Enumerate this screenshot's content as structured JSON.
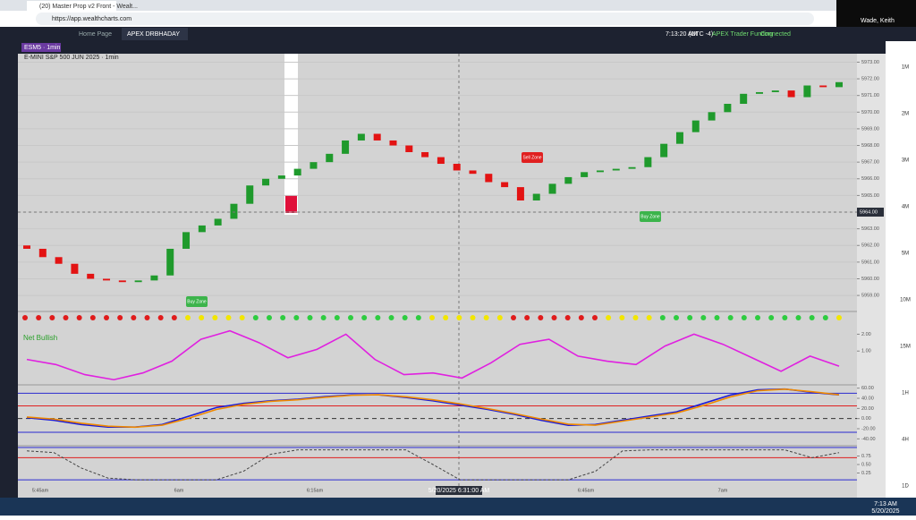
{
  "browser": {
    "tab_title": "(20) Master Prop v2 Front - Wealt...",
    "url": "https://app.wealthcharts.com"
  },
  "app": {
    "tabs": [
      "Home Page",
      "APEX DRBHADAY"
    ],
    "time": "7:13:20 AM",
    "timezone": "(UTC -4)",
    "account": "APEX Trader Funding",
    "status": "Connected"
  },
  "user": "Wade, Keith",
  "chart_data": [
    {
      "type": "candlestick",
      "symbol": "ESM5 · 1min",
      "title": "E-MINI S&P 500 JUN 2025 · 1min",
      "open": [
        5962.0,
        5961.8,
        5961.3,
        5960.9,
        5960.3,
        5960.0,
        5959.9,
        5959.8,
        5959.9,
        5960.2,
        5961.8,
        5962.8,
        5963.2,
        5963.6,
        5964.5,
        5965.6,
        5966.0,
        5966.2,
        5966.6,
        5967.0,
        5967.5,
        5968.3,
        5968.7,
        5968.3,
        5968.0,
        5967.6,
        5967.3,
        5966.9,
        5966.5,
        5966.3,
        5965.8,
        5965.5,
        5964.7,
        5965.1,
        5965.7,
        5966.1,
        5966.4,
        5966.5,
        5966.6,
        5966.7,
        5967.3,
        5968.1,
        5968.8,
        5969.5,
        5970.0,
        5970.5,
        5971.1,
        5971.2,
        5971.3,
        5970.9,
        5971.6,
        5971.5
      ],
      "close": [
        5961.8,
        5961.3,
        5960.9,
        5960.3,
        5960.0,
        5959.9,
        5959.8,
        5959.9,
        5960.2,
        5961.8,
        5962.8,
        5963.2,
        5963.6,
        5964.5,
        5965.6,
        5966.0,
        5966.2,
        5966.6,
        5967.0,
        5967.5,
        5968.3,
        5968.7,
        5968.3,
        5968.0,
        5967.6,
        5967.3,
        5966.9,
        5966.5,
        5966.3,
        5965.8,
        5965.5,
        5964.7,
        5965.1,
        5965.7,
        5966.1,
        5966.4,
        5966.5,
        5966.6,
        5966.7,
        5967.3,
        5968.1,
        5968.8,
        5969.5,
        5970.0,
        5970.5,
        5971.1,
        5971.2,
        5971.3,
        5970.9,
        5971.6,
        5971.5,
        5971.8
      ],
      "up_color": "#1f9a2c",
      "down_color": "#e31313",
      "ylim": [
        5958.2,
        5973.4
      ],
      "yticks": [
        {
          "value": 5959,
          "label": "5959.00"
        },
        {
          "value": 5960,
          "label": "5960.00"
        },
        {
          "value": 5961,
          "label": "5961.00"
        },
        {
          "value": 5962,
          "label": "5962.00"
        },
        {
          "value": 5963,
          "label": "5963.00"
        },
        {
          "value": 5964,
          "label": "5964.00"
        },
        {
          "value": 5965,
          "label": "5965.00"
        },
        {
          "value": 5966,
          "label": "5966.00"
        },
        {
          "value": 5967,
          "label": "5967.00"
        },
        {
          "value": 5968,
          "label": "5968.00"
        },
        {
          "value": 5969,
          "label": "5969.00"
        },
        {
          "value": 5970,
          "label": "5970.00"
        },
        {
          "value": 5971,
          "label": "5971.00"
        },
        {
          "value": 5972,
          "label": "5972.00"
        },
        {
          "value": 5973,
          "label": "5973.00"
        }
      ],
      "crosshair_price": {
        "value": 5964,
        "label": "5964.00"
      },
      "annotations": [
        "Sell Zone",
        "Buy Zone",
        "Buy Zone"
      ]
    },
    {
      "type": "dots",
      "colors": [
        "#e01b1b",
        "#e01b1b",
        "#e01b1b",
        "#e01b1b",
        "#e01b1b",
        "#e01b1b",
        "#e01b1b",
        "#e01b1b",
        "#e01b1b",
        "#e01b1b",
        "#e01b1b",
        "#e01b1b",
        "#f2e600",
        "#f2e600",
        "#f2e600",
        "#f2e600",
        "#f2e600",
        "#2ecc40",
        "#2ecc40",
        "#2ecc40",
        "#2ecc40",
        "#2ecc40",
        "#2ecc40",
        "#2ecc40",
        "#2ecc40",
        "#2ecc40",
        "#2ecc40",
        "#2ecc40",
        "#2ecc40",
        "#2ecc40",
        "#f2e600",
        "#f2e600",
        "#f2e600",
        "#f2e600",
        "#f2e600",
        "#f2e600",
        "#e01b1b",
        "#e01b1b",
        "#e01b1b",
        "#e01b1b",
        "#e01b1b",
        "#e01b1b",
        "#e01b1b",
        "#f2e600",
        "#f2e600",
        "#f2e600",
        "#f2e600",
        "#2ecc40",
        "#2ecc40",
        "#2ecc40",
        "#2ecc40",
        "#2ecc40",
        "#2ecc40",
        "#2ecc40",
        "#2ecc40",
        "#2ecc40",
        "#2ecc40",
        "#2ecc40",
        "#2ecc40",
        "#2ecc40",
        "#f2e600"
      ]
    },
    {
      "type": "line",
      "title": "Net Bullish",
      "color": "#e020e0",
      "values": [
        0.5,
        0.2,
        -0.4,
        -0.7,
        -0.3,
        0.4,
        1.7,
        2.2,
        1.5,
        0.6,
        1.1,
        2.0,
        0.5,
        -0.4,
        -0.3,
        -0.6,
        0.3,
        1.4,
        1.7,
        0.7,
        0.4,
        0.2,
        1.3,
        2.0,
        1.4,
        0.6,
        -0.2,
        0.7,
        0.1
      ],
      "ylim": [
        -0.9,
        2.5
      ],
      "yticks": [
        {
          "value": 1,
          "label": "1.00"
        },
        {
          "value": 2,
          "label": "2.00"
        }
      ]
    },
    {
      "type": "line",
      "series": [
        {
          "color": "#1c1cd8",
          "values": [
            1.7,
            -3.3,
            -11.7,
            -16.7,
            -16.7,
            -11.7,
            5,
            21.7,
            30,
            35,
            38.3,
            43.3,
            46.7,
            46.7,
            41.7,
            35,
            26.7,
            18.3,
            8.3,
            -3.3,
            -13.3,
            -11.7,
            -3.3,
            5,
            13.3,
            30,
            46.7,
            56.7,
            58.3,
            51.7,
            46.7
          ]
        },
        {
          "color": "#f08a00",
          "values": [
            3,
            -1,
            -9,
            -15,
            -17,
            -13,
            1,
            18,
            28,
            34,
            37,
            42,
            46,
            47,
            43,
            37,
            29,
            20,
            10,
            -1,
            -11,
            -13,
            -5,
            3,
            11,
            26,
            43,
            55,
            58,
            53,
            47
          ]
        }
      ],
      "levels": [
        50,
        25,
        0,
        -27
      ],
      "ylim": [
        -50,
        63
      ],
      "yticks": [
        {
          "value": 60,
          "label": "60.00"
        },
        {
          "value": 40,
          "label": "40.00"
        },
        {
          "value": 20,
          "label": "20.00"
        },
        {
          "value": 0,
          "label": "0.00"
        },
        {
          "value": -20,
          "label": "-20.00"
        },
        {
          "value": -40,
          "label": "-40.00"
        }
      ]
    },
    {
      "type": "line",
      "color": "#444444",
      "values": [
        0.9,
        0.85,
        0.4,
        0.1,
        0.05,
        0.05,
        0.05,
        0.05,
        0.3,
        0.8,
        0.93,
        0.93,
        0.93,
        0.93,
        0.93,
        0.5,
        0.05,
        0.05,
        0.05,
        0.05,
        0.05,
        0.3,
        0.9,
        0.93,
        0.93,
        0.93,
        0.93,
        0.93,
        0.93,
        0.7,
        0.85
      ],
      "levels": [
        1,
        0.7,
        0.05
      ],
      "ylim": [
        0,
        1
      ],
      "yticks": [
        {
          "value": 0.75,
          "label": "0.75"
        },
        {
          "value": 0.5,
          "label": "0.50"
        },
        {
          "value": 0.25,
          "label": "0.25"
        }
      ]
    }
  ],
  "x_labels": [
    "5:45am",
    "6am",
    "6:15am",
    "6:45am",
    "7am"
  ],
  "crosshair_time": "5/20/2025 6:31:00 AM",
  "timeframes": [
    "1M",
    "2M",
    "3M",
    "4M",
    "5M",
    "10M",
    "15M",
    "1H",
    "4H",
    "1D"
  ],
  "taskbar": {
    "time": "7:13 AM",
    "date": "5/20/2025"
  }
}
